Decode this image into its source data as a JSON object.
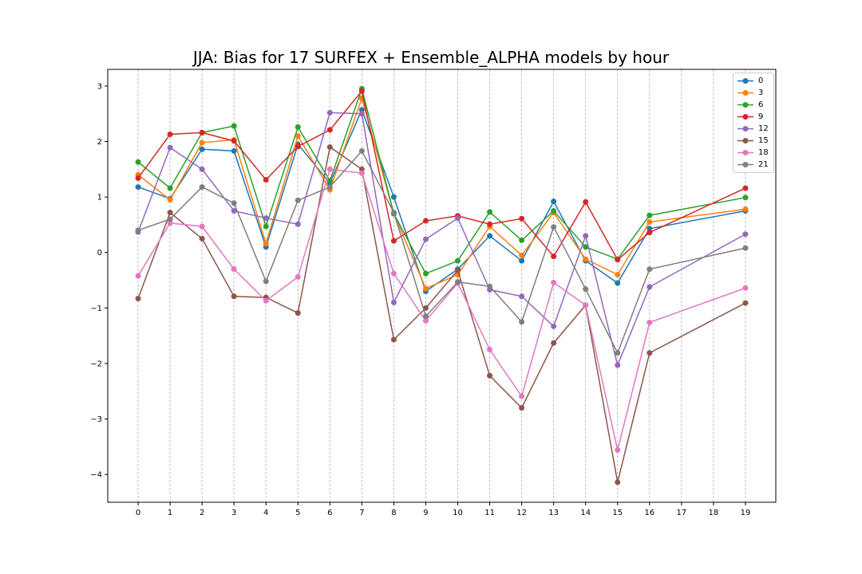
{
  "chart_data": {
    "type": "line",
    "title": "JJA: Bias for 17 SURFEX + Ensemble_ALPHA models by hour",
    "xlabel": "",
    "ylabel": "",
    "x_ticks": [
      "0",
      "1",
      "2",
      "3",
      "4",
      "5",
      "6",
      "7",
      "8",
      "9",
      "10",
      "11",
      "12",
      "13",
      "14",
      "15",
      "16",
      "17",
      "18",
      "19"
    ],
    "y_ticks": [
      "3",
      "2",
      "1",
      "0",
      "−1",
      "−2",
      "−3",
      "−4"
    ],
    "xlim": [
      -0.95,
      19.95
    ],
    "ylim": [
      -4.5,
      3.3
    ],
    "grid": "x-dashed",
    "legend_position": "top-right",
    "x_points": [
      0,
      1,
      2,
      3,
      4,
      5,
      6,
      7,
      8,
      9,
      10,
      11,
      12,
      13,
      14,
      15,
      16,
      19
    ],
    "series": [
      {
        "name": "0",
        "color": "#1f77b4",
        "values": [
          1.18,
          0.97,
          1.86,
          1.83,
          0.1,
          1.95,
          1.25,
          2.57,
          1.0,
          -0.7,
          -0.3,
          0.3,
          -0.15,
          0.92,
          -0.15,
          -0.55,
          0.43,
          0.75
        ]
      },
      {
        "name": "3",
        "color": "#ff7f0e",
        "values": [
          1.4,
          0.95,
          1.98,
          2.03,
          0.16,
          2.1,
          1.13,
          2.78,
          0.7,
          -0.65,
          -0.4,
          0.47,
          -0.05,
          0.72,
          -0.12,
          -0.4,
          0.55,
          0.78
        ]
      },
      {
        "name": "6",
        "color": "#2ca02c",
        "values": [
          1.63,
          1.16,
          2.16,
          2.28,
          0.47,
          2.26,
          1.29,
          2.95,
          0.7,
          -0.38,
          -0.15,
          0.73,
          0.22,
          0.75,
          0.1,
          -0.12,
          0.67,
          0.99
        ]
      },
      {
        "name": "9",
        "color": "#d62728",
        "values": [
          1.34,
          2.13,
          2.16,
          2.01,
          1.31,
          1.91,
          2.21,
          2.91,
          0.21,
          0.57,
          0.66,
          0.51,
          0.61,
          -0.07,
          0.91,
          -0.13,
          0.36,
          1.16
        ]
      },
      {
        "name": "12",
        "color": "#9467bd",
        "values": [
          0.37,
          1.89,
          1.5,
          0.75,
          0.62,
          0.51,
          2.52,
          2.5,
          -0.9,
          0.24,
          0.62,
          -0.67,
          -0.79,
          -1.33,
          0.3,
          -2.03,
          -0.62,
          0.33
        ]
      },
      {
        "name": "15",
        "color": "#8c564b",
        "values": [
          -0.83,
          0.72,
          0.25,
          -0.79,
          -0.81,
          -1.09,
          1.9,
          1.5,
          -1.57,
          -1.0,
          -0.32,
          -2.22,
          -2.8,
          -1.63,
          -0.95,
          -4.14,
          -1.81,
          -0.91
        ]
      },
      {
        "name": "18",
        "color": "#e377c2",
        "values": [
          -0.42,
          0.53,
          0.47,
          -0.3,
          -0.87,
          -0.44,
          1.5,
          1.43,
          -0.38,
          -1.23,
          -0.55,
          -1.75,
          -2.59,
          -0.54,
          -0.95,
          -3.56,
          -1.26,
          -0.64
        ]
      },
      {
        "name": "21",
        "color": "#7f7f7f",
        "values": [
          0.4,
          0.6,
          1.18,
          0.89,
          -0.52,
          0.94,
          1.18,
          1.83,
          0.72,
          -1.15,
          -0.53,
          -0.61,
          -1.25,
          0.46,
          -0.66,
          -1.81,
          -0.3,
          0.08
        ]
      }
    ]
  }
}
